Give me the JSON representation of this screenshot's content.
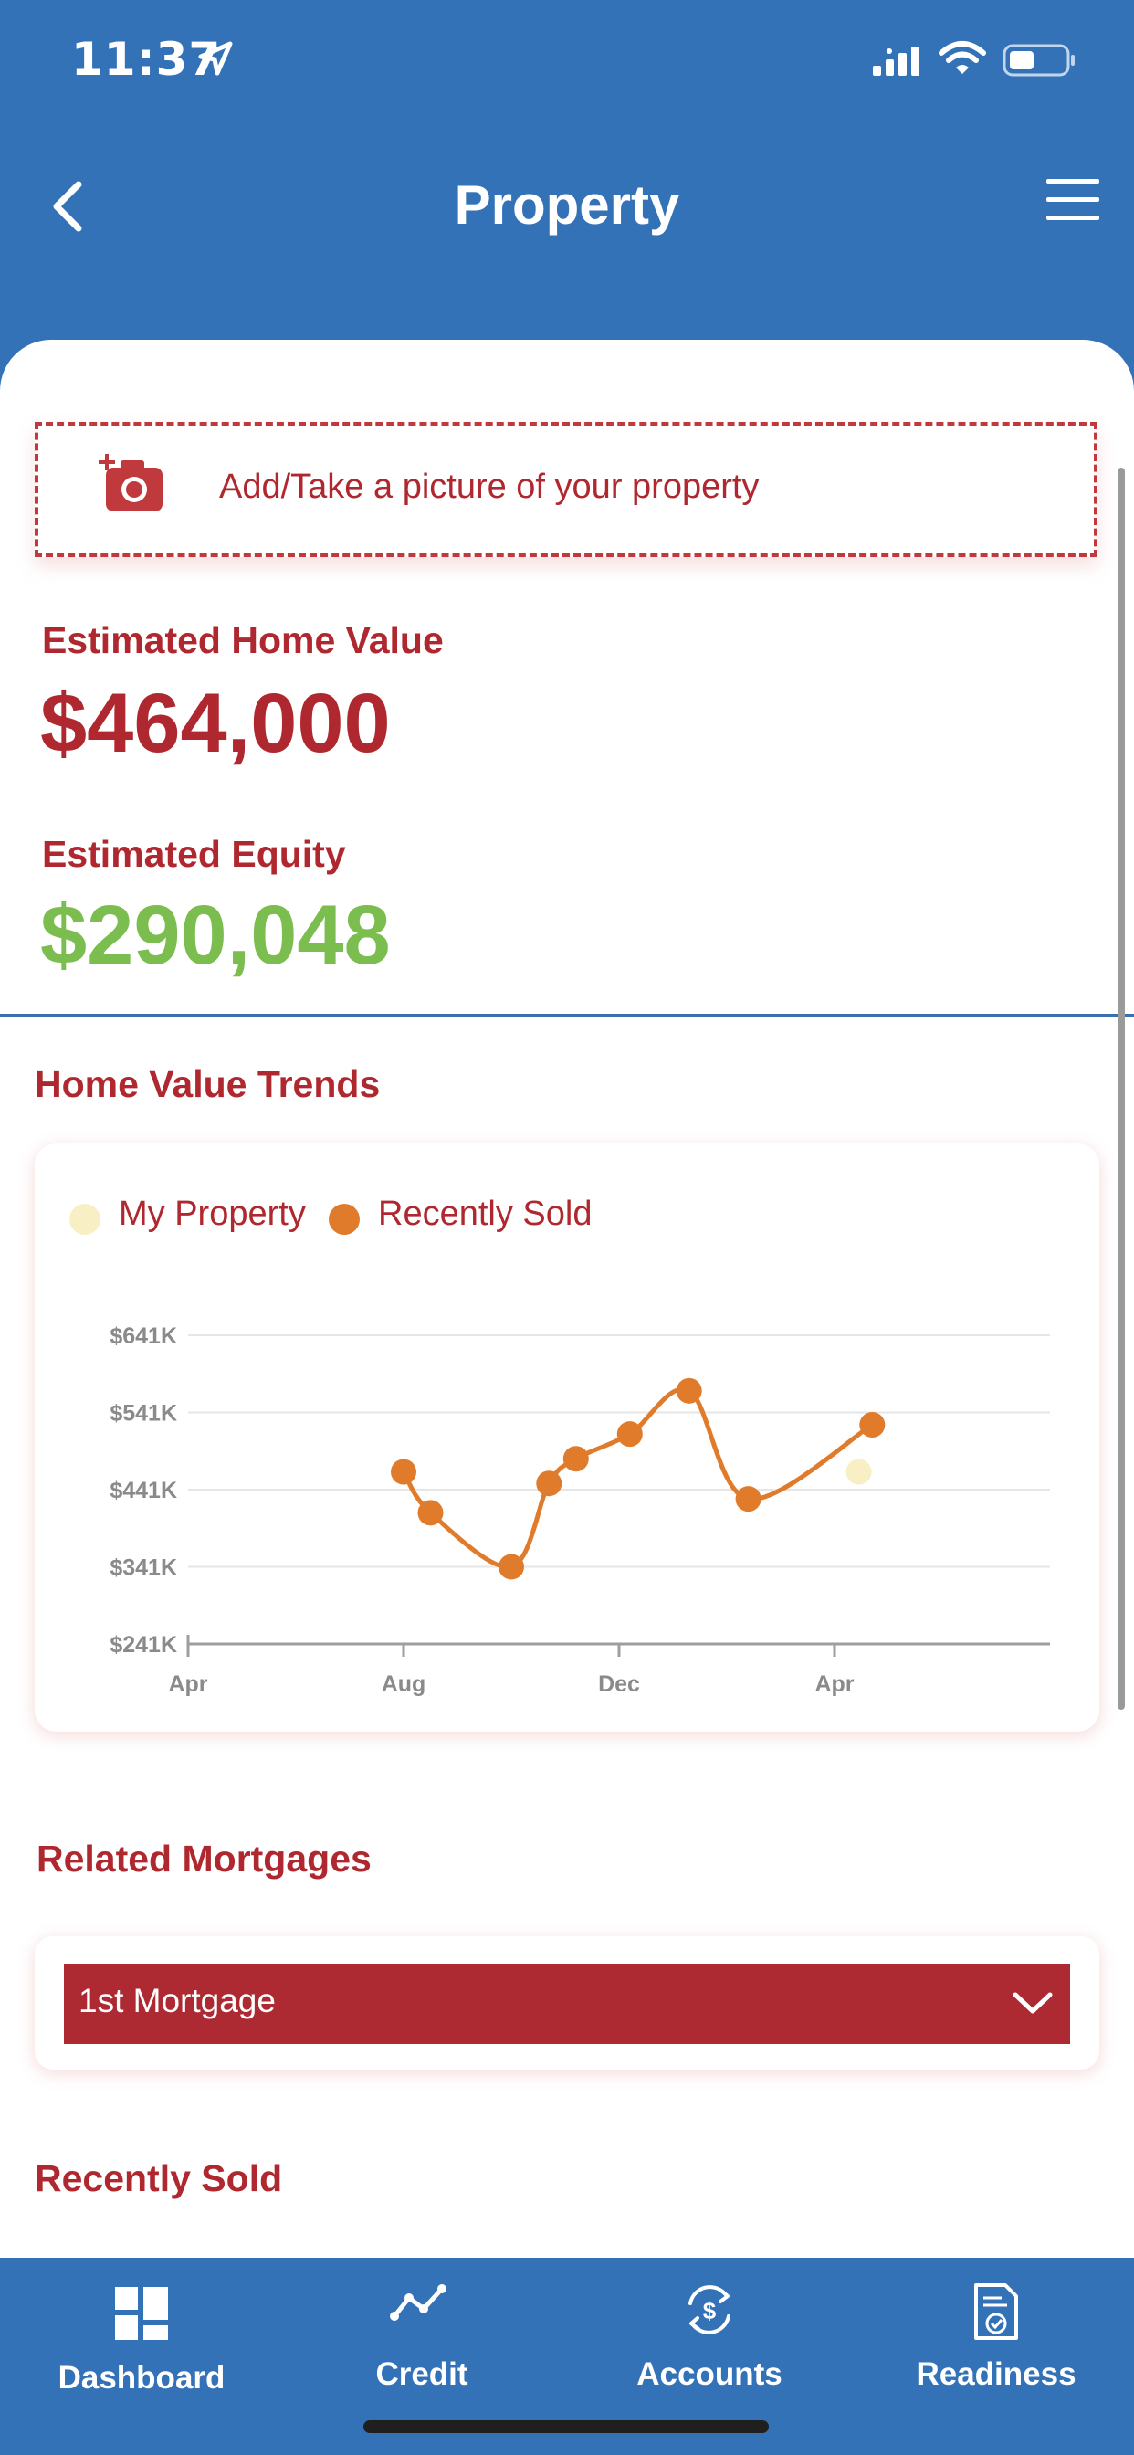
{
  "status_bar": {
    "time": "11:37"
  },
  "header": {
    "title": "Property"
  },
  "photo_upload": {
    "label": "Add/Take a picture of your property"
  },
  "home_value": {
    "label": "Estimated Home Value",
    "value": "$464,000",
    "color": "#b0282f"
  },
  "equity": {
    "label": "Estimated Equity",
    "value": "$290,048",
    "color": "#7bbd4e"
  },
  "trends": {
    "title": "Home Value Trends",
    "legend": [
      {
        "label": "My Property",
        "color": "#f8efc4"
      },
      {
        "label": "Recently Sold",
        "color": "#e07b2c"
      }
    ]
  },
  "chart_data": {
    "type": "line",
    "title": "",
    "xlabel": "",
    "ylabel": "",
    "y_ticks": [
      "$641K",
      "$541K",
      "$441K",
      "$341K",
      "$241K"
    ],
    "y_tick_values": [
      641,
      541,
      441,
      341,
      241
    ],
    "x_ticks": [
      "Apr",
      "Aug",
      "Dec",
      "Apr"
    ],
    "x_tick_values": [
      0,
      4,
      8,
      12
    ],
    "ylim": [
      241,
      641
    ],
    "xlim": [
      0,
      16
    ],
    "grid": true,
    "legend_position": "top-left",
    "series": [
      {
        "name": "Recently Sold",
        "color": "#e07b2c",
        "x": [
          4.0,
          4.5,
          6.0,
          6.7,
          7.2,
          8.2,
          9.3,
          10.4,
          12.7
        ],
        "y": [
          464,
          411,
          341,
          449,
          481,
          513,
          569,
          429,
          525
        ]
      },
      {
        "name": "My Property",
        "color": "#f8efc4",
        "x": [
          12.45
        ],
        "y": [
          464
        ]
      }
    ]
  },
  "mortgages": {
    "title": "Related Mortgages",
    "selected": "1st Mortgage"
  },
  "recently_sold": {
    "title": "Recently Sold"
  },
  "tab_bar": {
    "tabs": [
      {
        "label": "Dashboard",
        "icon": "dashboard-icon"
      },
      {
        "label": "Credit",
        "icon": "credit-trend-icon"
      },
      {
        "label": "Accounts",
        "icon": "accounts-dollar-icon"
      },
      {
        "label": "Readiness",
        "icon": "readiness-document-icon"
      }
    ]
  }
}
